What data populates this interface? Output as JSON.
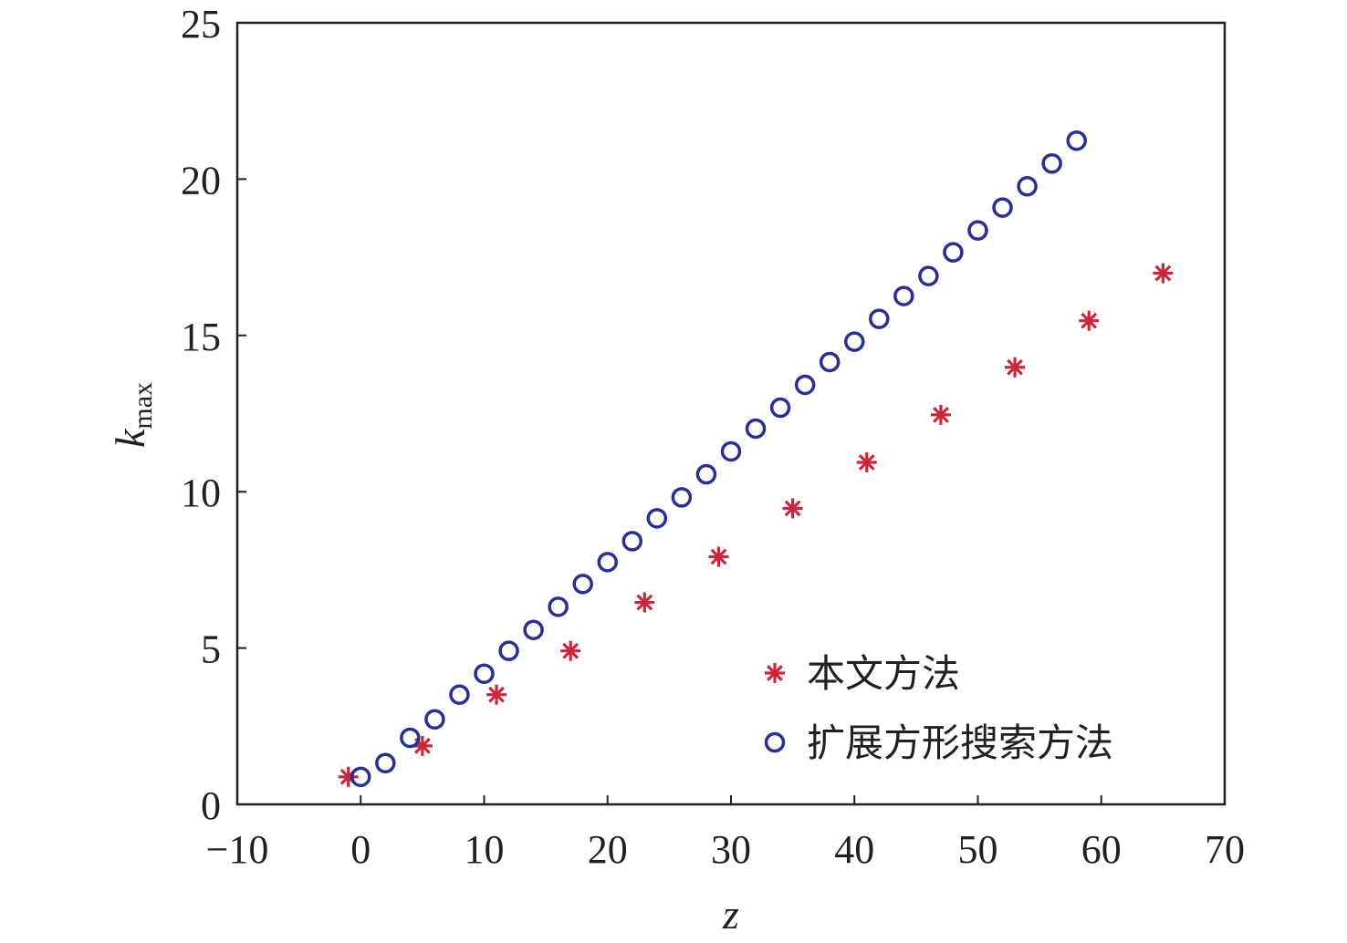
{
  "chart_data": {
    "type": "scatter",
    "title": "",
    "xlabel": "z",
    "ylabel": "k",
    "ylabel_sub": "max",
    "xlim": [
      -10,
      70
    ],
    "ylim": [
      0,
      25
    ],
    "xticks": [
      -10,
      0,
      10,
      20,
      30,
      40,
      50,
      60,
      70
    ],
    "yticks": [
      0,
      5,
      10,
      15,
      20,
      25
    ],
    "xtick_labels": [
      "−10",
      "0",
      "10",
      "20",
      "30",
      "40",
      "50",
      "60",
      "70"
    ],
    "ytick_labels": [
      "0",
      "5",
      "10",
      "15",
      "20",
      "25"
    ],
    "grid": false,
    "legend_placement": "bottom-right",
    "series": [
      {
        "name": "本文方法",
        "marker": "asterisk",
        "color": "#c8283c",
        "x": [
          -1,
          5,
          11,
          17,
          23,
          29,
          35,
          41,
          47,
          53,
          59,
          65
        ],
        "y": [
          0.88,
          1.87,
          3.51,
          4.91,
          6.46,
          7.92,
          9.47,
          10.94,
          12.46,
          13.98,
          15.47,
          16.99
        ]
      },
      {
        "name": "扩展方形搜索方法",
        "marker": "circle",
        "color": "#2b2f8f",
        "x": [
          0,
          2,
          4,
          6,
          8,
          10,
          12,
          14,
          16,
          18,
          20,
          22,
          24,
          26,
          28,
          30,
          32,
          34,
          36,
          38,
          40,
          42,
          44,
          46,
          48,
          50,
          52,
          54,
          56,
          58
        ],
        "y": [
          0.88,
          1.32,
          2.13,
          2.72,
          3.51,
          4.18,
          4.91,
          5.58,
          6.32,
          7.05,
          7.75,
          8.42,
          9.15,
          9.82,
          10.56,
          11.29,
          12.02,
          12.69,
          13.42,
          14.15,
          14.8,
          15.53,
          16.26,
          16.9,
          17.66,
          18.36,
          19.09,
          19.77,
          20.5,
          21.23
        ]
      }
    ]
  }
}
